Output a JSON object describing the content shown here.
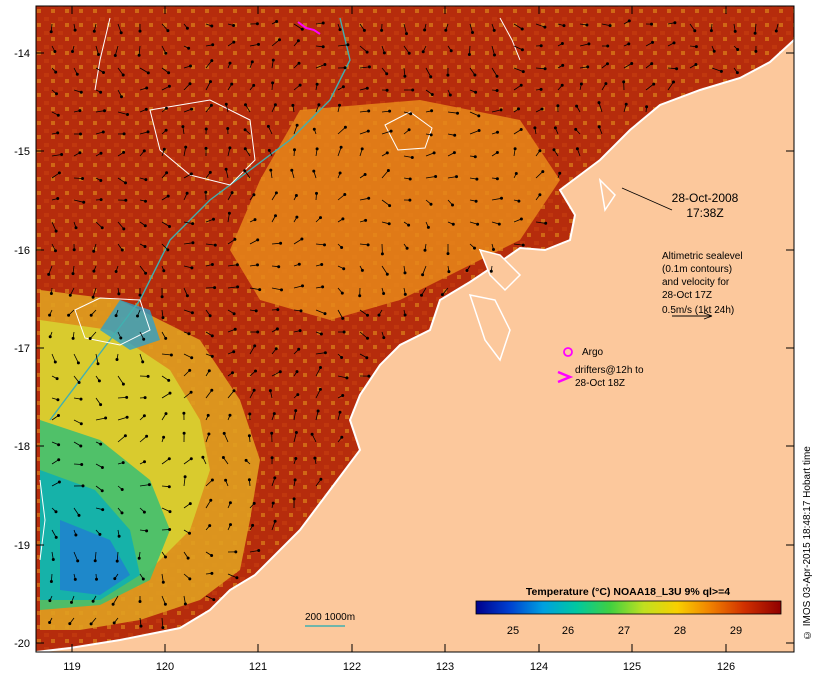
{
  "map": {
    "lat_ticks": [
      "-14",
      "-15",
      "-16",
      "-17",
      "-18",
      "-19",
      "-20"
    ],
    "lon_ticks": [
      "119",
      "120",
      "121",
      "122",
      "123",
      "124",
      "125",
      "126"
    ],
    "colors": {
      "land": "#fcc89c",
      "sst_hot": "#a01808",
      "sst_warm": "#e07010",
      "sst_mid": "#f0c020",
      "sst_cool": "#40c060",
      "sst_cold": "#2070d0",
      "coast": "#ffffff",
      "bathymetry": "#40b0b0",
      "contour": "#ffffff",
      "drifter": "#ff00ff"
    }
  },
  "annotations": {
    "datetime_line1": "28-Oct-2008",
    "datetime_line2": "17:38Z",
    "altimetry_line1": "Altimetric sealevel",
    "altimetry_line2": "(0.1m contours)",
    "altimetry_line3": "and velocity for",
    "altimetry_line4": "28-Oct 17Z",
    "scale_arrow_label": "0.5m/s (1kt 24h)",
    "argo_label": "Argo",
    "drifters_line1": "drifters@12h to",
    "drifters_line2": "28-Oct 18Z",
    "bathymetry_label": "200  1000m"
  },
  "colorbar": {
    "title": "Temperature (°C) NOAA18_L3U 9% ql>=4",
    "ticks": [
      "25",
      "26",
      "27",
      "28",
      "29"
    ],
    "stops": [
      "#00008c",
      "#0040d0",
      "#00a0e0",
      "#00c8a0",
      "#40d040",
      "#c0e020",
      "#f8d000",
      "#f08000",
      "#d03000",
      "#900000"
    ]
  },
  "credit": "© IMOS 03-Apr-2015 18:48:17 Hobart time"
}
